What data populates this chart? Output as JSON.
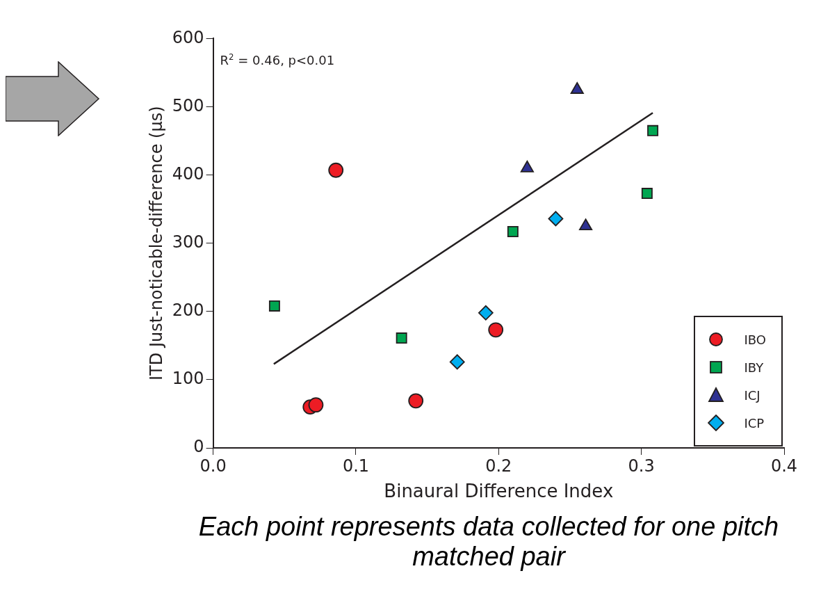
{
  "chart_data": {
    "type": "scatter",
    "xlabel": "Binaural Difference Index",
    "ylabel": "ITD Just-noticable-difference (µs)",
    "xlim": [
      0,
      0.4
    ],
    "xticks": [
      {
        "value": 0,
        "label": "0.0"
      },
      0.1,
      0.2,
      0.3,
      0.4
    ],
    "ylim": [
      0,
      600
    ],
    "yticks": [
      0,
      100,
      200,
      300,
      400,
      500,
      600
    ],
    "grid": false,
    "legend": "bottom right",
    "annotations": [
      "R$^{2}$ = 0.46, p<0.01",
      "Each point represents data collected for one pitch matched pair"
    ],
    "series": [
      {
        "name": "IBO",
        "color": "#ed1c24",
        "marker": "circle",
        "x": [
          0.068,
          0.072,
          0.086,
          0.142,
          0.198
        ],
        "values": [
          60,
          63,
          407,
          69,
          173
        ]
      },
      {
        "name": "IBY",
        "color": "#00a651",
        "marker": "square",
        "x": [
          0.043,
          0.132,
          0.21,
          0.304,
          0.308
        ],
        "values": [
          208,
          161,
          317,
          373,
          465
        ]
      },
      {
        "name": "ICJ",
        "color": "#2e3192",
        "marker": "triangle",
        "x": [
          0.255,
          0.22,
          0.261
        ],
        "values": [
          525,
          410,
          325
        ]
      },
      {
        "name": "ICP",
        "color": "#00aeef",
        "marker": "diamond",
        "x": [
          0.191,
          0.171,
          0.24
        ],
        "values": [
          198,
          126,
          336
        ]
      },
      {
        "type": "line",
        "color": "#231f20",
        "marker": "none",
        "x": [
          0.0425,
          0.308
        ],
        "values": [
          123,
          491
        ]
      }
    ]
  }
}
